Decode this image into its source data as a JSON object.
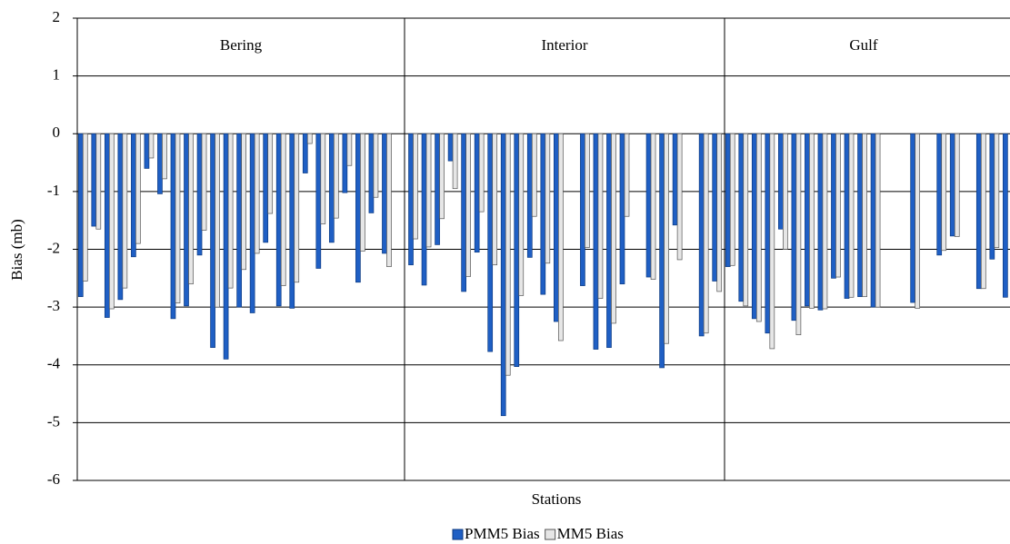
{
  "chart_data": {
    "type": "bar",
    "x_label": "Stations",
    "y_label": "Bias (mb)",
    "annotations": [
      "Bering",
      "Interior",
      "Gulf"
    ],
    "categories": [
      null,
      null,
      null,
      null,
      null,
      null,
      null,
      null,
      null,
      null,
      null,
      null,
      null,
      null,
      null,
      null,
      null,
      null,
      null,
      null,
      null,
      null,
      null,
      null,
      null,
      null,
      null,
      null,
      null,
      null,
      null,
      null,
      null,
      null,
      null,
      null,
      null,
      null,
      null,
      null,
      null,
      null,
      null,
      null,
      null,
      null,
      null,
      null,
      null,
      null,
      null,
      null,
      null,
      null,
      null,
      null,
      null,
      null,
      null,
      null,
      null,
      null,
      null,
      null,
      null,
      null,
      null,
      null,
      null,
      null,
      null
    ],
    "series": [
      {
        "name": "PMM5 Bias",
        "color": "#1f5fc4",
        "values": [
          -2.82,
          -1.6,
          -3.18,
          -2.87,
          -2.13,
          -0.6,
          -1.04,
          -3.2,
          -2.98,
          -2.1,
          -3.7,
          -3.9,
          -3.0,
          -3.1,
          -1.88,
          -2.98,
          -3.02,
          -0.68,
          -2.33,
          -1.88,
          -1.02,
          -2.57,
          -1.37,
          -2.07,
          null,
          -2.27,
          -2.62,
          -1.92,
          -0.47,
          -2.73,
          -2.05,
          -3.77,
          -4.88,
          -4.03,
          -2.14,
          -2.78,
          -3.25,
          null,
          -2.63,
          -3.73,
          -3.7,
          -2.6,
          null,
          -2.48,
          -4.05,
          -1.58,
          null,
          -3.5,
          -2.55,
          -2.3,
          -2.9,
          -3.2,
          -3.45,
          -1.65,
          -3.23,
          -2.98,
          -3.05,
          -2.5,
          -2.85,
          -2.82,
          -3.0,
          null,
          null,
          -2.92,
          null,
          -2.1,
          -1.77,
          null,
          -2.68,
          -2.17,
          -2.83
        ]
      },
      {
        "name": "MM5 Bias",
        "color": "#e6e6e6",
        "values": [
          -2.55,
          -1.65,
          -3.03,
          -2.67,
          -1.9,
          -0.42,
          -0.78,
          -2.93,
          -2.6,
          -1.67,
          -3.0,
          -2.67,
          -2.35,
          -2.07,
          -1.38,
          -2.63,
          -2.57,
          -0.17,
          -1.56,
          -1.46,
          -0.55,
          -2.03,
          -1.1,
          -2.3,
          null,
          -1.82,
          -1.96,
          -1.47,
          -0.95,
          -2.47,
          -1.35,
          -2.27,
          -4.18,
          -2.8,
          -1.43,
          -2.24,
          -3.58,
          null,
          -1.97,
          -2.85,
          -3.28,
          -1.43,
          null,
          -2.52,
          -3.63,
          -2.18,
          null,
          -3.45,
          -2.73,
          -2.28,
          -2.98,
          -3.25,
          -3.72,
          -2.0,
          -3.48,
          -3.02,
          -3.03,
          -2.48,
          -2.83,
          -2.82,
          -3.0,
          null,
          null,
          -3.02,
          null,
          -2.02,
          -1.78,
          null,
          -2.68,
          -1.97,
          null
        ]
      }
    ],
    "ylim": [
      -6,
      2
    ],
    "yticks": [
      -6,
      -5,
      -4,
      -3,
      -2,
      -1,
      0,
      1,
      2
    ],
    "grid": true
  }
}
